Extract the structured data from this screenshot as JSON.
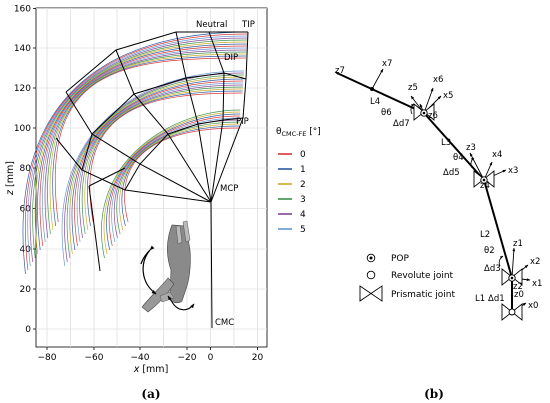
{
  "panel_a": {
    "caption": "(a)",
    "xlabel_var": "x",
    "xlabel_unit": " [mm]",
    "ylabel_var": "z",
    "ylabel_unit": " [mm]",
    "xticks": [
      "−80",
      "−60",
      "−40",
      "−20",
      "0",
      "20"
    ],
    "yticks": [
      "0",
      "20",
      "40",
      "60",
      "80",
      "100",
      "120",
      "140",
      "160"
    ],
    "labels": {
      "neutral": "Neutral",
      "tip": "TIP",
      "dip": "DIP",
      "pip": "PIP",
      "mcp": "MCP",
      "cmc": "CMC"
    },
    "legend": {
      "title_main": "θ",
      "title_sub": "CMC-FE",
      "title_unit": " [°]",
      "entries": [
        {
          "label": "0",
          "color": "#d62728"
        },
        {
          "label": "1",
          "color": "#1f4e9c"
        },
        {
          "label": "2",
          "color": "#c8a415"
        },
        {
          "label": "3",
          "color": "#2e8b3e"
        },
        {
          "label": "4",
          "color": "#7a3b8e"
        },
        {
          "label": "5",
          "color": "#5b8fd0"
        }
      ]
    }
  },
  "panel_b": {
    "caption": "(b)",
    "joint_labels": {
      "z7": "z7",
      "x7": "x7",
      "z6": "z6",
      "x6": "x6",
      "z5": "z5",
      "x5": "x5",
      "L4": "L4",
      "theta6": "θ6",
      "dd7": "Δd7",
      "z3": "z3",
      "x4": "x4",
      "L3": "L3",
      "theta4": "θ4",
      "dd5": "Δd5",
      "z4": "z4",
      "x3": "x3",
      "L2": "L2",
      "z1": "z1",
      "theta2": "θ2",
      "dd3": "Δd3",
      "x2": "x2",
      "z2": "z2",
      "x1": "x1",
      "L1": "L1",
      "dd1": "Δd1",
      "z0": "z0",
      "x0": "x0"
    },
    "legend": {
      "pop": "POP",
      "revolute": "Revolute joint",
      "prismatic": "Prismatic joint"
    }
  }
}
